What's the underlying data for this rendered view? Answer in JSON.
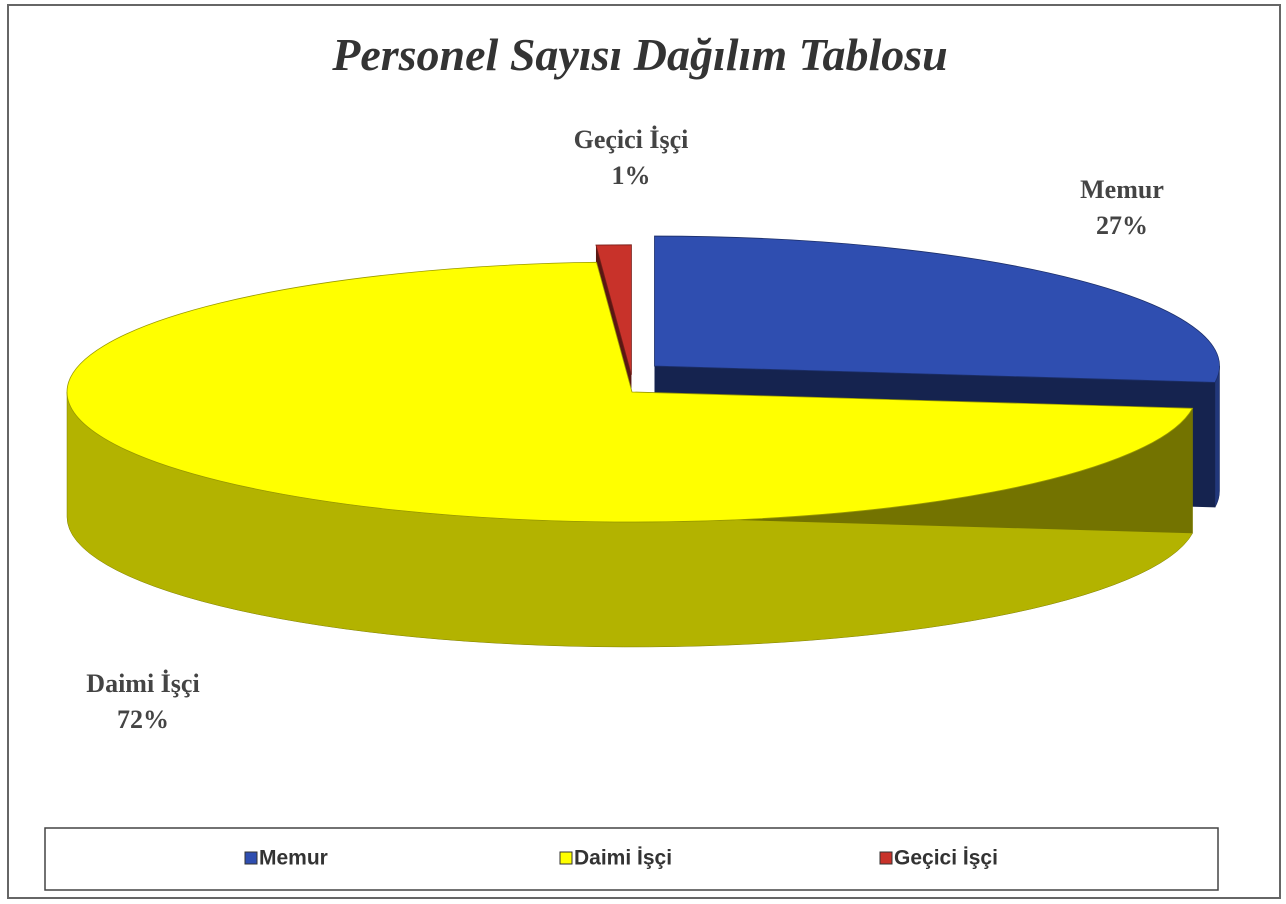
{
  "chart_data": {
    "type": "pie3d",
    "title": "Personel Sayısı Dağılım Tablosu",
    "categories": [
      "Memur",
      "Daimi İşçi",
      "Geçici İşçi"
    ],
    "values": [
      27,
      72,
      1
    ],
    "value_labels": [
      "27%",
      "72%",
      "1%"
    ],
    "colors": [
      "#2f4eb0",
      "#ffff00",
      "#c8322a"
    ],
    "legend": "bottom"
  }
}
